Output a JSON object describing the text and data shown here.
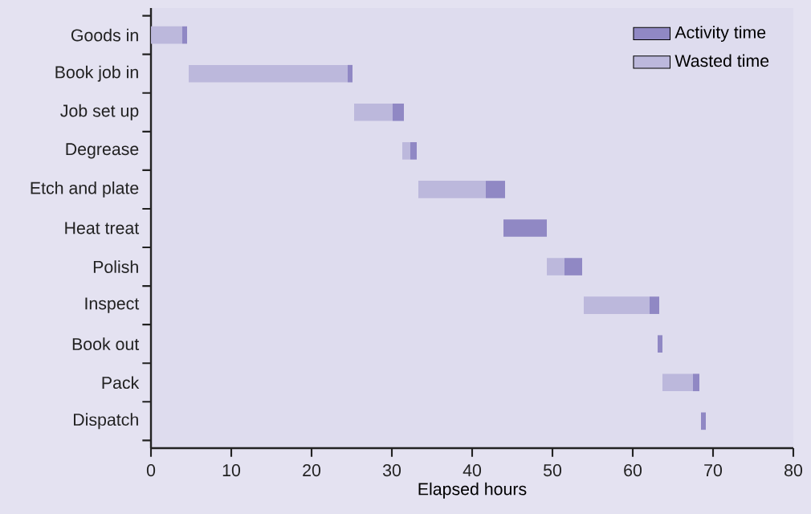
{
  "chart_data": {
    "type": "bar",
    "orientation": "horizontal",
    "xlabel": "Elapsed hours",
    "categories": [
      "Goods in",
      "Book job in",
      "Job set up",
      "Degrease",
      "Etch and plate",
      "Heat treat",
      "Polish",
      "Inspect",
      "Book out",
      "Pack",
      "Dispatch"
    ],
    "series": [
      {
        "name": "Wasted time",
        "color": "#bcb8dc",
        "base": [
          0,
          4.7,
          25.3,
          31.3,
          33.3,
          null,
          49.3,
          53.9,
          null,
          63.7,
          null
        ],
        "values": [
          3.9,
          19.8,
          4.8,
          1.0,
          8.4,
          null,
          2.2,
          8.2,
          null,
          3.8,
          null
        ]
      },
      {
        "name": "Activity time",
        "color": "#9088c4",
        "base": [
          3.9,
          24.5,
          30.1,
          32.3,
          41.7,
          43.9,
          51.5,
          62.1,
          63.1,
          67.5,
          68.5
        ],
        "values": [
          0.6,
          0.6,
          1.4,
          0.8,
          2.4,
          5.4,
          2.2,
          1.2,
          0.6,
          0.8,
          0.6
        ]
      }
    ],
    "xlim": [
      0,
      80
    ],
    "xticks": [
      0,
      10,
      20,
      30,
      40,
      50,
      60,
      70,
      80
    ],
    "legend": "top right"
  }
}
